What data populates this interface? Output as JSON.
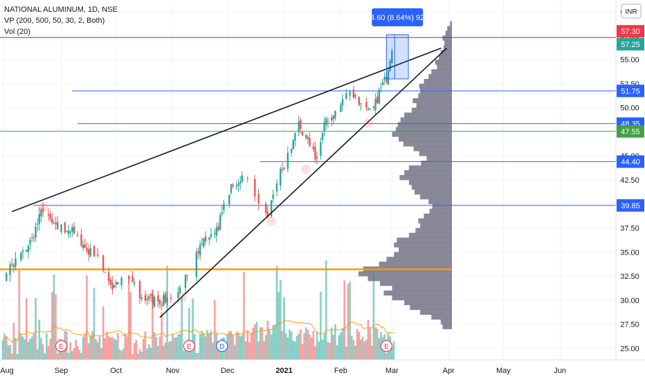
{
  "legend": {
    "title": "NATIONAL ALUMINUM, 1D, NSE",
    "vp": "VP (200, 500, 50, 30, 2, Both)",
    "vol": "Vol (20)"
  },
  "currency_badge": "INR",
  "measure_label": "4.60 (8.64%) 92",
  "chart_data": {
    "type": "candlestick",
    "symbol": "NATIONAL ALUMINUM",
    "interval": "1D",
    "exchange": "NSE",
    "ylim": [
      23.8,
      61.2
    ],
    "y_ticks": [
      25.0,
      27.5,
      30.0,
      32.5,
      35.0,
      37.5,
      40.0,
      42.5,
      45.0,
      47.5,
      50.0,
      52.5,
      55.0,
      57.5,
      60.0
    ],
    "y_tick_labels": [
      "25.00",
      "27.50",
      "30.00",
      "32.50",
      "35.00",
      "37.50",
      "40.00",
      "42.50",
      "45.00",
      "47.50",
      "50.00",
      "52.50",
      "55.00",
      "57.50",
      "60.00"
    ],
    "x_ticks": [
      {
        "label": "Aug",
        "day": 0
      },
      {
        "label": "Sep",
        "day": 32
      },
      {
        "label": "Oct",
        "day": 62
      },
      {
        "label": "Nov",
        "day": 93
      },
      {
        "label": "Dec",
        "day": 123
      },
      {
        "label": "2021",
        "day": 154
      },
      {
        "label": "Feb",
        "day": 185
      },
      {
        "label": "Mar",
        "day": 213
      },
      {
        "label": "Apr",
        "day": 244
      },
      {
        "label": "May",
        "day": 274
      },
      {
        "label": "Jun",
        "day": 305
      }
    ],
    "price_levels": [
      {
        "value": 57.3,
        "label": "57.30",
        "color": "#f23645",
        "line": "#b22833"
      },
      {
        "value": 57.25,
        "label": "57.25",
        "color": "#26a69a",
        "line": null
      },
      {
        "value": 51.75,
        "label": "51.75",
        "color": "#2962ff",
        "line": "#2962ff"
      },
      {
        "value": 48.35,
        "label": "48.35",
        "color": "#2962ff",
        "line": "#2962ff"
      },
      {
        "value": 47.55,
        "label": "47.55",
        "color": "#43a047",
        "line": "#43a047"
      },
      {
        "value": 44.4,
        "label": "44.40",
        "color": "#2962ff",
        "line": "#2962ff"
      },
      {
        "value": 39.85,
        "label": "39.85",
        "color": "#2962ff",
        "line": "#2962ff"
      }
    ],
    "support_level": {
      "value": 33.2,
      "color": "#ff9800"
    },
    "trendlines": [
      {
        "from": {
          "day": 5,
          "price": 39.2
        },
        "to": {
          "day": 240,
          "price": 56.2
        }
      },
      {
        "from": {
          "day": 86,
          "price": 28.2
        },
        "to": {
          "day": 243,
          "price": 56.2
        }
      }
    ],
    "measurement": {
      "from_price": 53.0,
      "to_price": 57.6,
      "from_day": 210,
      "to_day": 222,
      "change": 4.6,
      "change_pct": 8.64,
      "bars": 92
    },
    "key_points": [
      [
        0,
        32.6
      ],
      [
        9,
        34.5
      ],
      [
        16,
        36.3
      ],
      [
        22,
        39.6
      ],
      [
        28,
        37.6
      ],
      [
        37,
        37.3
      ],
      [
        46,
        35.2
      ],
      [
        53,
        34.3
      ],
      [
        60,
        31.3
      ],
      [
        67,
        32.8
      ],
      [
        76,
        30.2
      ],
      [
        86,
        29.9
      ],
      [
        96,
        30.4
      ],
      [
        103,
        33.8
      ],
      [
        110,
        36.2
      ],
      [
        118,
        37.8
      ],
      [
        124,
        41.3
      ],
      [
        132,
        43.1
      ],
      [
        139,
        40.9
      ],
      [
        145,
        38.2
      ],
      [
        150,
        42.4
      ],
      [
        157,
        45.3
      ],
      [
        162,
        48.3
      ],
      [
        167,
        46.2
      ],
      [
        172,
        44.6
      ],
      [
        176,
        48.2
      ],
      [
        181,
        49.2
      ],
      [
        186,
        50.6
      ],
      [
        190,
        51.9
      ],
      [
        196,
        50.3
      ],
      [
        202,
        49.2
      ],
      [
        206,
        51.6
      ],
      [
        210,
        53.2
      ],
      [
        214,
        57.4
      ]
    ],
    "volume_profile_buckets": [
      {
        "price": 59.0,
        "volume": 0.02
      },
      {
        "price": 58.5,
        "volume": 0.05
      },
      {
        "price": 58.0,
        "volume": 0.07
      },
      {
        "price": 57.5,
        "volume": 0.1
      },
      {
        "price": 57.0,
        "volume": 0.08
      },
      {
        "price": 56.5,
        "volume": 0.09
      },
      {
        "price": 56.0,
        "volume": 0.12
      },
      {
        "price": 55.5,
        "volume": 0.14
      },
      {
        "price": 55.0,
        "volume": 0.18
      },
      {
        "price": 54.5,
        "volume": 0.16
      },
      {
        "price": 54.0,
        "volume": 0.22
      },
      {
        "price": 53.5,
        "volume": 0.25
      },
      {
        "price": 53.0,
        "volume": 0.3
      },
      {
        "price": 52.5,
        "volume": 0.35
      },
      {
        "price": 52.0,
        "volume": 0.34
      },
      {
        "price": 51.5,
        "volume": 0.36
      },
      {
        "price": 51.0,
        "volume": 0.42
      },
      {
        "price": 50.5,
        "volume": 0.38
      },
      {
        "price": 50.0,
        "volume": 0.43
      },
      {
        "price": 49.5,
        "volume": 0.51
      },
      {
        "price": 49.0,
        "volume": 0.55
      },
      {
        "price": 48.5,
        "volume": 0.58
      },
      {
        "price": 48.0,
        "volume": 0.6
      },
      {
        "price": 47.5,
        "volume": 0.64
      },
      {
        "price": 47.0,
        "volume": 0.57
      },
      {
        "price": 46.5,
        "volume": 0.52
      },
      {
        "price": 46.0,
        "volume": 0.41
      },
      {
        "price": 45.5,
        "volume": 0.35
      },
      {
        "price": 45.0,
        "volume": 0.27
      },
      {
        "price": 44.5,
        "volume": 0.33
      },
      {
        "price": 44.0,
        "volume": 0.46
      },
      {
        "price": 43.5,
        "volume": 0.51
      },
      {
        "price": 43.0,
        "volume": 0.56
      },
      {
        "price": 42.5,
        "volume": 0.46
      },
      {
        "price": 42.0,
        "volume": 0.43
      },
      {
        "price": 41.5,
        "volume": 0.4
      },
      {
        "price": 41.0,
        "volume": 0.34
      },
      {
        "price": 40.5,
        "volume": 0.25
      },
      {
        "price": 40.0,
        "volume": 0.21
      },
      {
        "price": 39.5,
        "volume": 0.24
      },
      {
        "price": 39.0,
        "volume": 0.3
      },
      {
        "price": 38.5,
        "volume": 0.36
      },
      {
        "price": 38.0,
        "volume": 0.34
      },
      {
        "price": 37.5,
        "volume": 0.39
      },
      {
        "price": 37.0,
        "volume": 0.46
      },
      {
        "price": 36.5,
        "volume": 0.59
      },
      {
        "price": 36.0,
        "volume": 0.62
      },
      {
        "price": 35.5,
        "volume": 0.57
      },
      {
        "price": 35.0,
        "volume": 0.62
      },
      {
        "price": 34.5,
        "volume": 0.7
      },
      {
        "price": 34.0,
        "volume": 0.78
      },
      {
        "price": 33.5,
        "volume": 0.95
      },
      {
        "price": 33.0,
        "volume": 1.0
      },
      {
        "price": 32.5,
        "volume": 0.9
      },
      {
        "price": 32.0,
        "volume": 0.77
      },
      {
        "price": 31.5,
        "volume": 0.64
      },
      {
        "price": 31.0,
        "volume": 0.73
      },
      {
        "price": 30.5,
        "volume": 0.64
      },
      {
        "price": 30.0,
        "volume": 0.51
      },
      {
        "price": 29.5,
        "volume": 0.45
      },
      {
        "price": 29.0,
        "volume": 0.34
      },
      {
        "price": 28.5,
        "volume": 0.22
      },
      {
        "price": 28.0,
        "volume": 0.12
      },
      {
        "price": 27.5,
        "volume": 0.1
      }
    ],
    "events": [
      {
        "day": 32,
        "label": "E",
        "kind": "earnings"
      },
      {
        "day": 102,
        "label": "E",
        "kind": "earnings"
      },
      {
        "day": 120,
        "label": "D",
        "kind": "dividend"
      },
      {
        "day": 210,
        "label": "E",
        "kind": "earnings"
      }
    ]
  }
}
